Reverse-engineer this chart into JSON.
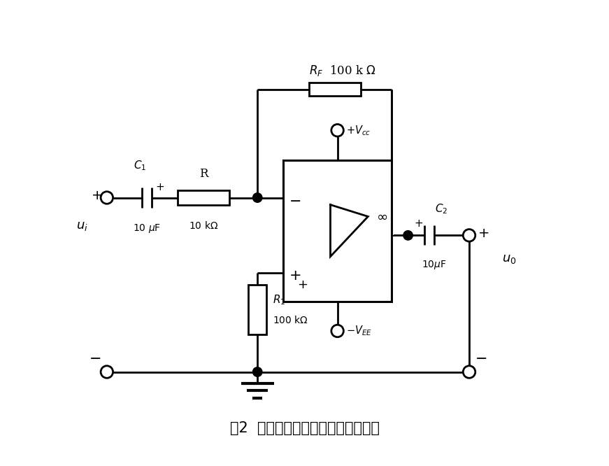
{
  "title": "图2  双电源反相输入式交流放大电路",
  "title_fontsize": 15,
  "background_color": "#ffffff",
  "line_color": "#000000",
  "line_width": 2.0,
  "fig_width": 8.71,
  "fig_height": 6.66,
  "dpi": 100
}
